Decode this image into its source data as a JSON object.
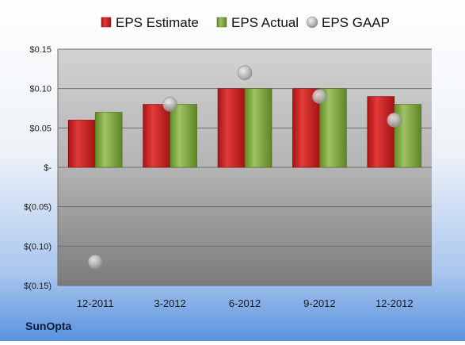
{
  "chart_data": {
    "type": "bar",
    "categories": [
      "12-2011",
      "3-2012",
      "6-2012",
      "9-2012",
      "12-2012"
    ],
    "series": [
      {
        "name": "EPS Estimate",
        "kind": "bar",
        "color": "#cc1f1f",
        "values": [
          0.06,
          0.08,
          0.1,
          0.1,
          0.09
        ]
      },
      {
        "name": "EPS Actual",
        "kind": "bar",
        "color": "#7fa640",
        "values": [
          0.07,
          0.08,
          0.1,
          0.1,
          0.08
        ]
      },
      {
        "name": "EPS GAAP",
        "kind": "scatter",
        "color": "#b0b0b0",
        "values": [
          -0.12,
          0.08,
          0.12,
          0.09,
          0.06
        ]
      }
    ],
    "ylim": [
      -0.15,
      0.15
    ],
    "yticks": [
      0.15,
      0.1,
      0.05,
      0,
      -0.05,
      -0.1,
      -0.15
    ],
    "ytick_labels": [
      "$0.15",
      "$0.10",
      "$0.05",
      "$-",
      "$(0.05)",
      "$(0.10)",
      "$(0.15)"
    ],
    "grid": true,
    "legend_position": "top"
  },
  "footer": {
    "company": "SunOpta"
  }
}
